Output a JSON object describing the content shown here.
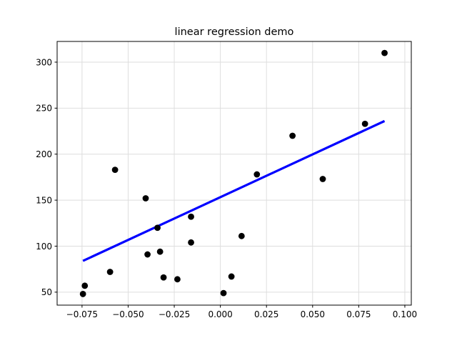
{
  "chart_data": {
    "type": "scatter",
    "title": "linear regression demo",
    "xlabel": "",
    "ylabel": "",
    "xlim": [
      -0.0885,
      0.1035
    ],
    "ylim": [
      35.9,
      322.5
    ],
    "grid": true,
    "x_ticks": [
      -0.075,
      -0.05,
      -0.025,
      0.0,
      0.025,
      0.05,
      0.075,
      0.1
    ],
    "x_tick_labels": [
      "−0.075",
      "−0.050",
      "−0.025",
      "0.000",
      "0.025",
      "0.050",
      "0.075",
      "0.100"
    ],
    "y_ticks": [
      50,
      100,
      150,
      200,
      250,
      300
    ],
    "y_tick_labels": [
      "50",
      "100",
      "150",
      "200",
      "250",
      "300"
    ],
    "series": [
      {
        "kind": "scatter",
        "color": "#000000",
        "points": [
          [
            -0.0745,
            48
          ],
          [
            -0.0735,
            57
          ],
          [
            -0.0598,
            72
          ],
          [
            -0.0571,
            183
          ],
          [
            -0.0405,
            152
          ],
          [
            -0.0395,
            91
          ],
          [
            -0.0341,
            120
          ],
          [
            -0.0327,
            94
          ],
          [
            -0.0308,
            66
          ],
          [
            -0.0233,
            64
          ],
          [
            -0.0159,
            132
          ],
          [
            -0.0159,
            104
          ],
          [
            0.0017,
            49
          ],
          [
            0.006,
            67
          ],
          [
            0.0115,
            111
          ],
          [
            0.0198,
            178
          ],
          [
            0.0391,
            220
          ],
          [
            0.0555,
            173
          ],
          [
            0.0784,
            233
          ],
          [
            0.089,
            310
          ]
        ]
      },
      {
        "kind": "line",
        "color": "#0000ff",
        "points": [
          [
            -0.0745,
            84
          ],
          [
            0.089,
            236
          ]
        ]
      }
    ]
  }
}
